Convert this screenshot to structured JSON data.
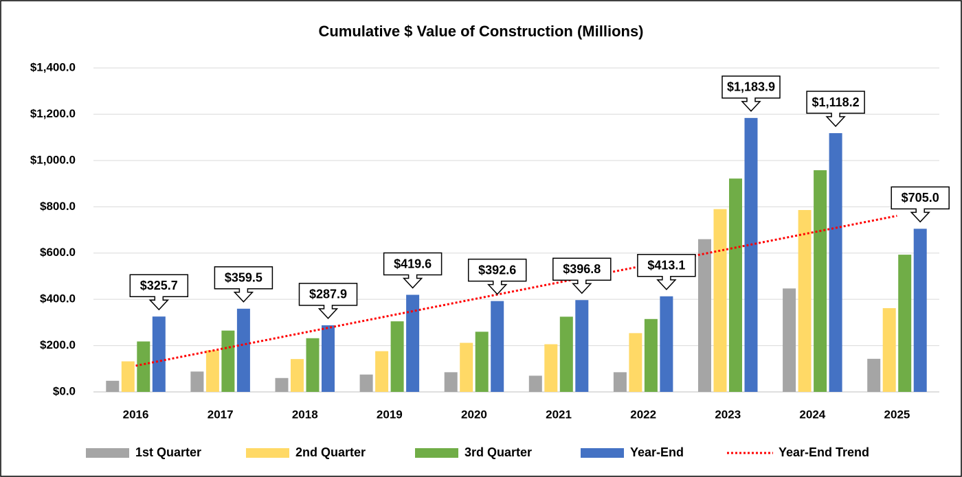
{
  "chart_data": {
    "type": "bar",
    "title": "Cumulative $ Value of Construction (Millions)",
    "categories": [
      "2016",
      "2017",
      "2018",
      "2019",
      "2020",
      "2021",
      "2022",
      "2023",
      "2024",
      "2025"
    ],
    "series": [
      {
        "name": "1st Quarter",
        "color": "#a5a5a5",
        "values": [
          48,
          88,
          60,
          75,
          85,
          70,
          85,
          660,
          447,
          143
        ]
      },
      {
        "name": "2nd Quarter",
        "color": "#ffd966",
        "values": [
          132,
          180,
          142,
          176,
          212,
          206,
          254,
          790,
          786,
          362
        ]
      },
      {
        "name": "3rd Quarter",
        "color": "#70ad47",
        "values": [
          218,
          265,
          232,
          305,
          260,
          325,
          315,
          922,
          958,
          593
        ]
      },
      {
        "name": "Year-End",
        "color": "#4472c4",
        "values": [
          325.7,
          359.5,
          287.9,
          419.6,
          392.6,
          396.8,
          413.1,
          1183.9,
          1118.2,
          705.0
        ],
        "value_labels": [
          "$325.7",
          "$359.5",
          "$287.9",
          "$419.6",
          "$392.6",
          "$396.8",
          "$413.1",
          "$1,183.9",
          "$1,118.2",
          "$705.0"
        ]
      },
      {
        "name": "Year-End Trend",
        "color": "#ff0000",
        "type": "line",
        "dotted": true,
        "values": [
          113,
          185,
          257,
          329,
          401,
          473,
          545,
          617,
          689,
          761
        ]
      }
    ],
    "ylim": [
      0,
      1400
    ],
    "yticks": [
      {
        "value": 0,
        "label": "$0.0"
      },
      {
        "value": 200,
        "label": "$200.0"
      },
      {
        "value": 400,
        "label": "$400.0"
      },
      {
        "value": 600,
        "label": "$600.0"
      },
      {
        "value": 800,
        "label": "$800.0"
      },
      {
        "value": 1000,
        "label": "$1,000.0"
      },
      {
        "value": 1200,
        "label": "$1,200.0"
      },
      {
        "value": 1400,
        "label": "$1,400.0"
      }
    ],
    "grid": true,
    "legend": "bottom"
  }
}
